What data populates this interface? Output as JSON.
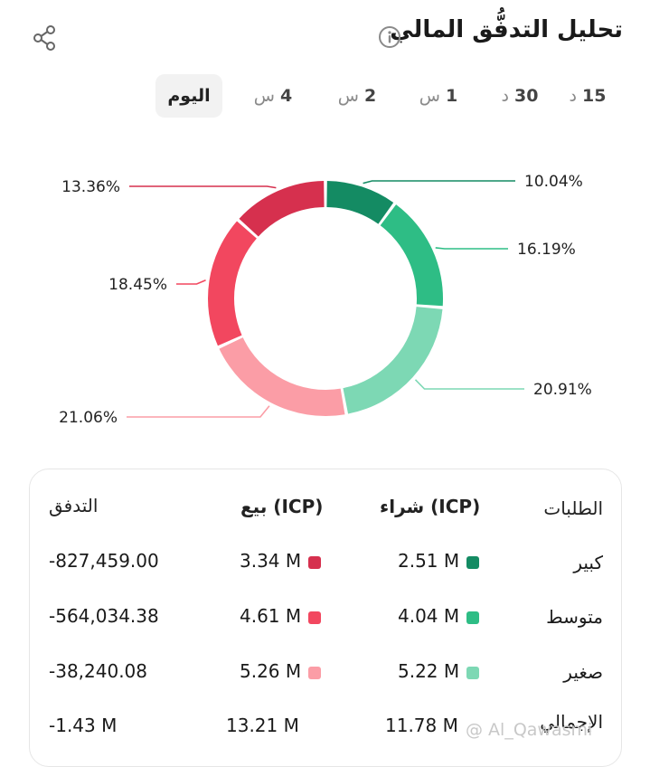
{
  "header": {
    "title": "تحليل التدفُّق المالي"
  },
  "tabs": [
    {
      "num": "15",
      "unit": "د"
    },
    {
      "num": "30",
      "unit": "د"
    },
    {
      "num": "1",
      "unit": "س"
    },
    {
      "num": "2",
      "unit": "س"
    },
    {
      "num": "4",
      "unit": "س"
    },
    {
      "label": "اليوم",
      "active": true
    }
  ],
  "colors": {
    "buy_large": "#148b63",
    "buy_medium": "#2ebd85",
    "buy_small": "#7dd8b4",
    "sell_large": "#d6304e",
    "sell_medium": "#f2475f",
    "sell_small": "#fb9da6"
  },
  "chart_data": {
    "type": "pie",
    "donut": true,
    "slices": [
      {
        "label": "10.04%",
        "value": 10.04,
        "color": "#148b63"
      },
      {
        "label": "16.19%",
        "value": 16.19,
        "color": "#2ebd85"
      },
      {
        "label": "20.91%",
        "value": 20.91,
        "color": "#7dd8b4"
      },
      {
        "label": "21.06%",
        "value": 21.06,
        "color": "#fb9da6"
      },
      {
        "label": "18.45%",
        "value": 18.45,
        "color": "#f2475f"
      },
      {
        "label": "13.36%",
        "value": 13.36,
        "color": "#d6304e"
      }
    ]
  },
  "table": {
    "headers": {
      "orders": "الطلبات",
      "buy": "شراء (ICP)",
      "sell": "بيع (ICP)",
      "flow": "التدفق"
    },
    "rows": [
      {
        "label": "كبير",
        "buy": "2.51 M",
        "sell": "3.34 M",
        "flow": "-827,459.00"
      },
      {
        "label": "متوسط",
        "buy": "4.04 M",
        "sell": "4.61 M",
        "flow": "-564,034.38"
      },
      {
        "label": "صغير",
        "buy": "5.22 M",
        "sell": "5.26 M",
        "flow": "-38,240.08"
      },
      {
        "label": "الإجمالي",
        "buy": "11.78 M",
        "sell": "13.21 M",
        "flow": "-1.43 M"
      }
    ]
  },
  "watermark": "@ Al_Qawasmi"
}
